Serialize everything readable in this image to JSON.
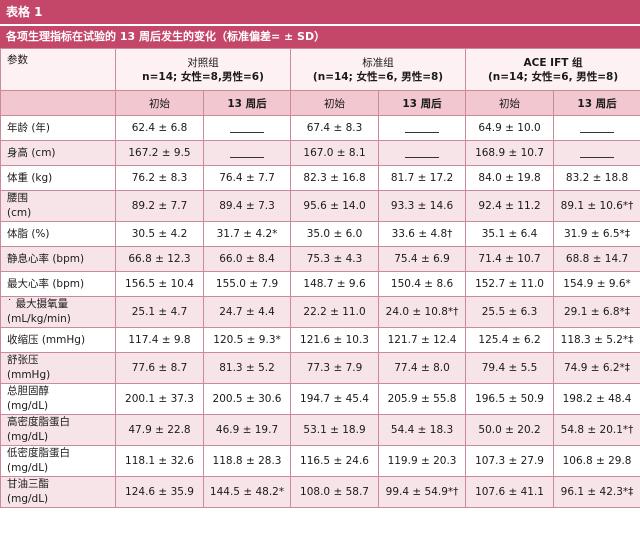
{
  "table_label": "表格 1",
  "caption": "各项生理指标在试验的 13 周后发生的变化（标准偏差= ± SD）",
  "header": {
    "param": "参数",
    "groups": [
      {
        "name": "对照组",
        "detail": "n=14; 女性=8,男性=6)"
      },
      {
        "name": "标准组",
        "detail": "(n=14; 女性=6, 男性=8)"
      },
      {
        "name": "ACE IFT 组",
        "detail": "(n=14; 女性=6, 男性=8)"
      }
    ],
    "sub": [
      "初始",
      "13 周后",
      "初始",
      "13 周后",
      "初始",
      "13 周后"
    ]
  },
  "rows": [
    {
      "label": "年龄 (年)",
      "values": [
        "62.4 ± 6.8",
        "",
        "67.4 ± 8.3",
        "",
        "64.9 ± 10.0",
        ""
      ],
      "blank": [
        false,
        true,
        false,
        true,
        false,
        true
      ]
    },
    {
      "label": "身高 (cm)",
      "values": [
        "167.2 ± 9.5",
        "",
        "167.0 ± 8.1",
        "",
        "168.9 ± 10.7",
        ""
      ],
      "blank": [
        false,
        true,
        false,
        true,
        false,
        true
      ]
    },
    {
      "label": "体重 (kg)",
      "values": [
        "76.2 ± 8.3",
        "76.4 ± 7.7",
        "82.3 ± 16.8",
        "81.7 ± 17.2",
        "84.0 ± 19.8",
        "83.2 ± 18.8"
      ]
    },
    {
      "label": "腰围\n(cm)",
      "values": [
        "89.2 ± 7.7",
        "89.4 ± 7.3",
        "95.6 ± 14.0",
        "93.3 ± 14.6",
        "92.4 ± 11.2",
        "89.1 ± 10.6*†"
      ]
    },
    {
      "label": "体脂 (%)",
      "values": [
        "30.5 ± 4.2",
        "31.7 ± 4.2*",
        "35.0 ± 6.0",
        "33.6 ± 4.8†",
        "35.1 ± 6.4",
        "31.9 ± 6.5*‡"
      ]
    },
    {
      "label": "静息心率 (bpm)",
      "values": [
        "66.8 ± 12.3",
        "66.0 ± 8.4",
        "75.3 ± 4.3",
        "75.4 ± 6.9",
        "71.4 ± 10.7",
        "68.8 ± 14.7"
      ]
    },
    {
      "label": "最大心率 (bpm)",
      "values": [
        "156.5 ± 10.4",
        "155.0 ± 7.9",
        "148.7 ± 9.6",
        "150.4 ± 8.6",
        "152.7 ± 11.0",
        "154.9 ± 9.6*"
      ]
    },
    {
      "label": "˙ 最大摄氧量\n(mL/kg/min)",
      "values": [
        "25.1 ± 4.7",
        "24.7 ± 4.4",
        "22.2 ± 11.0",
        "24.0 ± 10.8*†",
        "25.5 ± 6.3",
        "29.1 ± 6.8*‡"
      ]
    },
    {
      "label": "收缩压 (mmHg)",
      "values": [
        "117.4 ± 9.8",
        "120.5 ± 9.3*",
        "121.6 ± 10.3",
        "121.7 ± 12.4",
        "125.4 ± 6.2",
        "118.3 ± 5.2*‡"
      ]
    },
    {
      "label": "舒张压\n(mmHg)",
      "values": [
        "77.6 ± 8.7",
        "81.3 ± 5.2",
        "77.3 ± 7.9",
        "77.4 ± 8.0",
        "79.4 ± 5.5",
        "74.9 ± 6.2*‡"
      ]
    },
    {
      "label": "总胆固醇\n(mg/dL)",
      "values": [
        "200.1 ± 37.3",
        "200.5 ± 30.6",
        "194.7 ± 45.4",
        "205.9 ± 55.8",
        "196.5 ± 50.9",
        "198.2 ± 48.4"
      ]
    },
    {
      "label": "高密度脂蛋白\n(mg/dL)",
      "values": [
        "47.9 ± 22.8",
        "46.9 ± 19.7",
        "53.1 ± 18.9",
        "54.4 ± 18.3",
        "50.0 ± 20.2",
        "54.8 ± 20.1*†"
      ]
    },
    {
      "label": "低密度脂蛋白\n(mg/dL)",
      "values": [
        "118.1 ± 32.6",
        "118.8 ± 28.3",
        "116.5 ± 24.6",
        "119.9 ± 20.3",
        "107.3 ± 27.9",
        "106.8 ± 29.8"
      ]
    },
    {
      "label": "甘油三酯\n(mg/dL)",
      "values": [
        "124.6 ± 35.9",
        "144.5 ± 48.2*",
        "108.0 ± 58.7",
        "99.4 ± 54.9*†",
        "107.6 ± 41.1",
        "96.1 ± 42.3*‡"
      ]
    }
  ]
}
